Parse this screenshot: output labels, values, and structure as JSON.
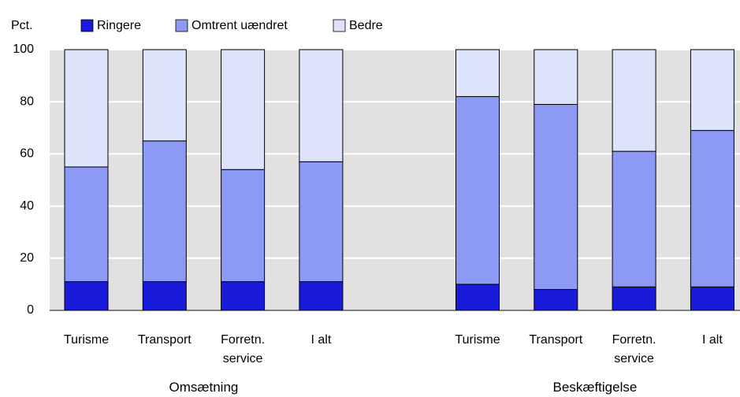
{
  "chart_data": {
    "type": "stacked_bar",
    "y_label": "Pct.",
    "categories": [
      "Turisme",
      "Transport",
      "Forretn. service",
      "I alt",
      "Turisme",
      "Transport",
      "Forretn. service",
      "I alt"
    ],
    "groups": [
      "Omsætning",
      "Beskæftigelse"
    ],
    "series": [
      {
        "name": "Ringere",
        "color": "#1a1adb",
        "values": [
          11,
          11,
          11,
          11,
          10,
          8,
          9,
          9
        ]
      },
      {
        "name": "Omtrent uændret",
        "color": "#8c99f5",
        "values": [
          44,
          54,
          43,
          46,
          72,
          71,
          52,
          60
        ]
      },
      {
        "name": "Bedre",
        "color": "#dde3fb",
        "values": [
          45,
          35,
          46,
          43,
          18,
          21,
          39,
          31
        ]
      }
    ],
    "ylim": [
      0,
      100
    ],
    "yticks": [
      0,
      20,
      40,
      60,
      80,
      100
    ],
    "grid": true
  }
}
